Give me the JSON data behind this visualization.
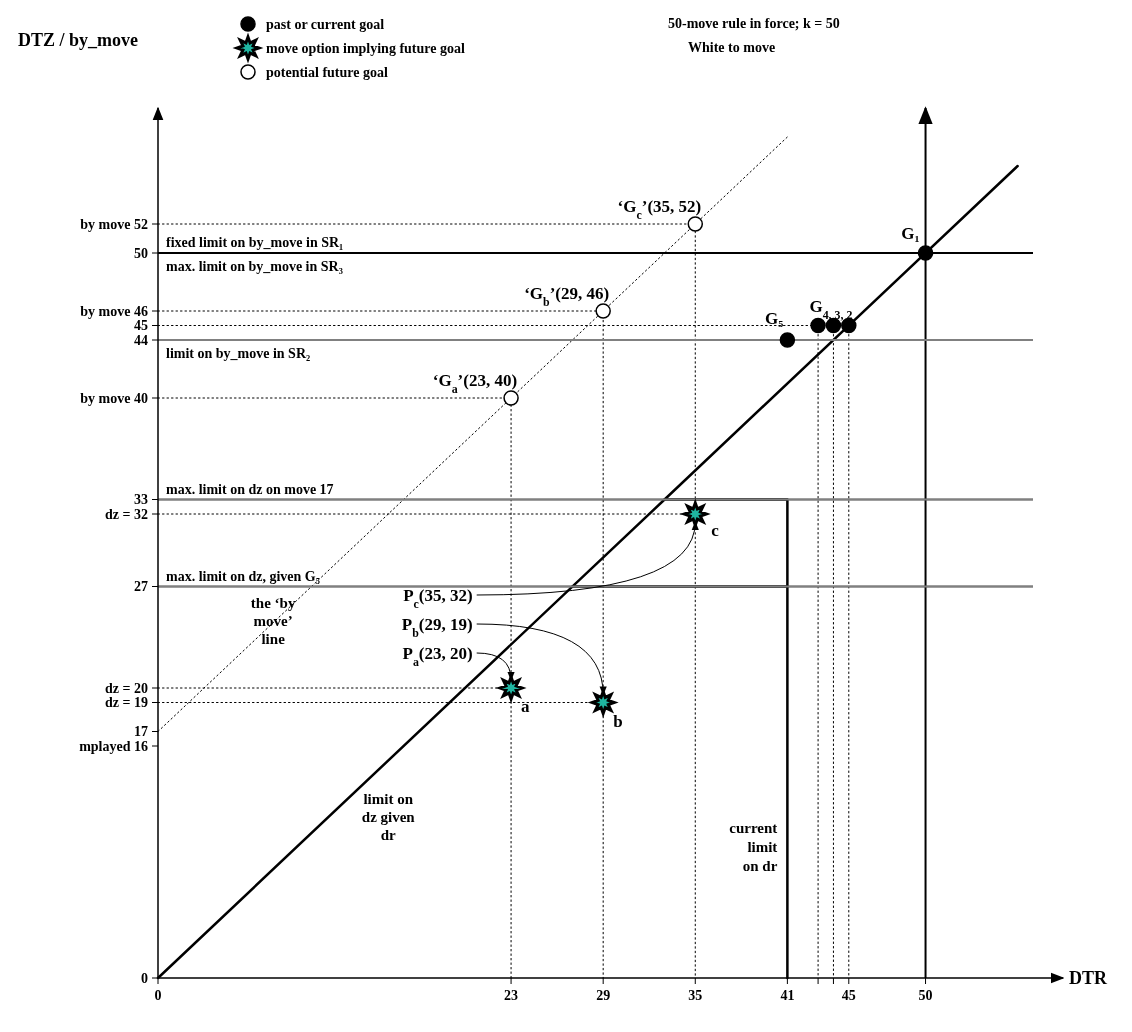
{
  "chart_data": {
    "type": "scatter",
    "xlabel": "DTR",
    "ylabel": "DTZ / by_move",
    "xlim": [
      0,
      57
    ],
    "ylim": [
      0,
      60
    ],
    "xticks": [
      0,
      23,
      29,
      35,
      41,
      {
        "value": 43,
        "label": null
      },
      {
        "value": 44,
        "label": null
      },
      45,
      50
    ],
    "yticks": [
      0,
      {
        "value": 16,
        "label": "mplayed 16"
      },
      17,
      {
        "value": 19,
        "label": "dz = 19"
      },
      {
        "value": 20,
        "label": "dz = 20"
      },
      27,
      {
        "value": 32,
        "label": "dz = 32"
      },
      33,
      {
        "value": 40,
        "label": "by move 40"
      },
      44,
      45,
      {
        "value": 46,
        "label": "by move 46"
      },
      50,
      {
        "value": 52,
        "label": "by move 52"
      }
    ],
    "legend": "top",
    "series": [
      {
        "type": "line",
        "line_style": "dotted",
        "color": "#000000",
        "x": [
          0,
          23,
          23
        ],
        "values": [
          40,
          40,
          0
        ]
      },
      {
        "type": "line",
        "line_style": "dotted",
        "color": "#000000",
        "x": [
          0,
          29,
          29
        ],
        "values": [
          46,
          46,
          0
        ]
      },
      {
        "type": "line",
        "line_style": "dotted",
        "color": "#000000",
        "x": [
          0,
          35,
          35
        ],
        "values": [
          52,
          52,
          0
        ]
      },
      {
        "type": "line",
        "line_style": "dotted",
        "color": "#000000",
        "x": [
          0,
          23
        ],
        "values": [
          20,
          20
        ]
      },
      {
        "type": "line",
        "line_style": "dotted",
        "color": "#000000",
        "x": [
          0,
          29
        ],
        "values": [
          19,
          19
        ]
      },
      {
        "type": "line",
        "line_style": "dotted",
        "color": "#000000",
        "x": [
          0,
          35
        ],
        "values": [
          32,
          32
        ]
      },
      {
        "type": "line",
        "line_style": "dotted",
        "color": "#000000",
        "x": [
          0,
          43
        ],
        "values": [
          45,
          45
        ]
      },
      {
        "type": "line",
        "line_style": "dotted",
        "color": "#000000",
        "x": [
          43,
          43
        ],
        "values": [
          45,
          0
        ]
      },
      {
        "type": "line",
        "line_style": "dotted",
        "color": "#000000",
        "x": [
          44,
          44
        ],
        "values": [
          45,
          0
        ]
      },
      {
        "type": "line",
        "line_style": "dotted",
        "color": "#000000",
        "x": [
          45,
          45
        ],
        "values": [
          45,
          0
        ]
      },
      {
        "name": "past or current goal",
        "marker": "circle",
        "color": "#000000",
        "x": [
          50,
          41,
          43,
          44,
          45
        ],
        "values": [
          50,
          44,
          45,
          45,
          45
        ]
      },
      {
        "name": "move option implying future goal",
        "marker": "star",
        "color": "#1fb5a0",
        "x": [
          23,
          29,
          35
        ],
        "values": [
          20,
          19,
          32
        ]
      },
      {
        "name": "potential future goal",
        "marker": "circle",
        "color": "#ffffff",
        "x": [
          23,
          29,
          35
        ],
        "values": [
          40,
          46,
          52
        ]
      },
      {
        "name": "limit on dz given dr",
        "type": "line",
        "line_style": "solid",
        "color": "#000000",
        "x": [
          0,
          33,
          41,
          41
        ],
        "values": [
          0,
          33,
          33,
          0
        ]
      },
      {
        "type": "line",
        "line_style": "solid",
        "color": "#000000",
        "x": [
          27,
          41
        ],
        "values": [
          27,
          27
        ]
      },
      {
        "name": "the ‘by move’ line",
        "type": "line",
        "line_style": "dotted",
        "color": "#000000",
        "x": [
          0,
          41
        ],
        "values": [
          17,
          58
        ]
      },
      {
        "type": "line",
        "line_style": "solid",
        "color": "#000000",
        "x": [
          33,
          56
        ],
        "values": [
          33,
          56
        ]
      }
    ],
    "ref_lines": [
      {
        "axis": "y",
        "value": 50,
        "label": "fixed limit on by_move in SR₁",
        "color": "#000000"
      },
      {
        "axis": "y",
        "value": 50,
        "label": "max. limit on by_move in SR₃",
        "color": "#000000"
      },
      {
        "axis": "y",
        "value": 44,
        "label": "limit on by_move in SR₂",
        "color": "#808080"
      },
      {
        "axis": "y",
        "value": 33,
        "label": "max. limit on dz on move 17",
        "color": "#808080"
      },
      {
        "axis": "y",
        "value": 27,
        "label": "max. limit on dz, given G₅",
        "color": "#808080"
      },
      {
        "axis": "x",
        "value": 50,
        "label": null,
        "color": "#000000"
      }
    ],
    "annotations": [
      "50-move rule in force; k = 50",
      "White to move",
      {
        "text": "‘G$_{a}$’(23, 40)",
        "x": 23,
        "y": 40
      },
      {
        "text": "‘G$_{b}$’(29, 46)",
        "x": 29,
        "y": 46
      },
      {
        "text": "‘G$_{c}$’(35, 52)",
        "x": 35,
        "y": 52
      },
      {
        "text": "G₁",
        "x": 50,
        "y": 50
      },
      {
        "text": "G₅",
        "x": 41,
        "y": 44
      },
      {
        "text": "G$_{4, 3, 2}$",
        "x": 44,
        "y": 45
      },
      {
        "text": "a",
        "x": 23,
        "y": 20
      },
      {
        "text": "b",
        "x": 29,
        "y": 19
      },
      {
        "text": "c",
        "x": 35,
        "y": 32
      },
      {
        "text": "P$_{c}$(35, 32)",
        "x": 35,
        "y": 32
      },
      {
        "text": "P$_{b}$(29, 19)",
        "x": 29,
        "y": 19
      },
      {
        "text": "P$_{a}$(23, 20)",
        "x": 23,
        "y": 20
      },
      {
        "text": "current limit on dr",
        "x": 41,
        "y": 10
      }
    ]
  }
}
